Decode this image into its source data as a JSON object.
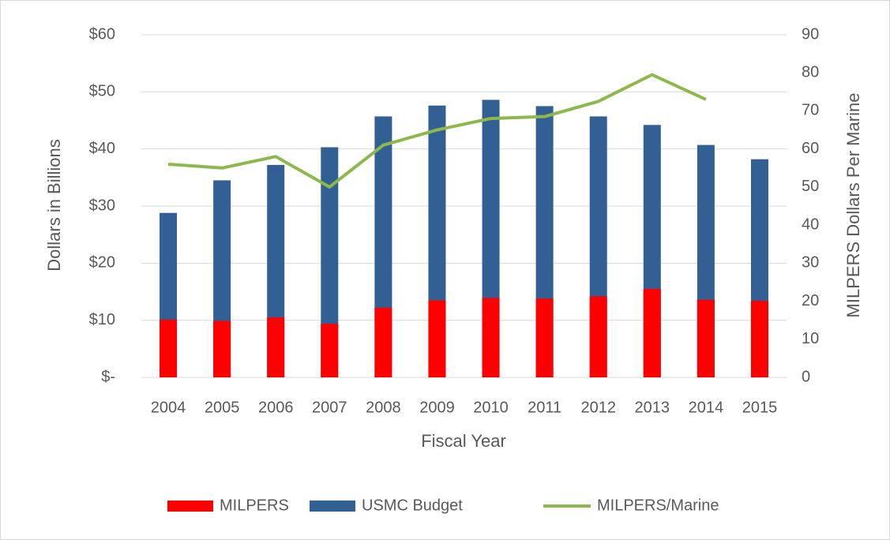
{
  "chart_data": {
    "type": "bar",
    "categories": [
      "2004",
      "2005",
      "2006",
      "2007",
      "2008",
      "2009",
      "2010",
      "2011",
      "2012",
      "2013",
      "2014",
      "2015"
    ],
    "series": [
      {
        "name": "MILPERS",
        "color": "#ff0000",
        "values": [
          10.1,
          9.9,
          10.5,
          9.4,
          12.2,
          13.5,
          13.9,
          13.8,
          14.2,
          15.5,
          13.6,
          13.4
        ]
      },
      {
        "name": "USMC Budget",
        "color": "#336094",
        "values": [
          28.8,
          34.5,
          37.2,
          40.3,
          45.7,
          47.6,
          48.6,
          47.5,
          45.7,
          44.2,
          40.7,
          38.2
        ]
      },
      {
        "name": "MILPERS/Marine",
        "color": "#8cb84c",
        "type": "line",
        "axis": "y2",
        "values": [
          56,
          55,
          58,
          50,
          61,
          65,
          68,
          68.5,
          72.5,
          79.5,
          73,
          null
        ]
      }
    ],
    "xlabel": "Fiscal Year",
    "ylabel": "Dollars in Billions",
    "y2label": "MILPERS Dollars Per Marine",
    "ylim": [
      0,
      60
    ],
    "yticks": [
      {
        "value": 0,
        "label": "$-"
      },
      {
        "value": 10,
        "label": "$10"
      },
      {
        "value": 20,
        "label": "$20"
      },
      {
        "value": 30,
        "label": "$30"
      },
      {
        "value": 40,
        "label": "$40"
      },
      {
        "value": 50,
        "label": "$50"
      },
      {
        "value": 60,
        "label": "$60"
      }
    ],
    "y2lim": [
      0,
      90
    ],
    "y2ticks": [
      0,
      10,
      20,
      30,
      40,
      50,
      60,
      70,
      80,
      90
    ],
    "grid": true,
    "legend": "bottom"
  }
}
